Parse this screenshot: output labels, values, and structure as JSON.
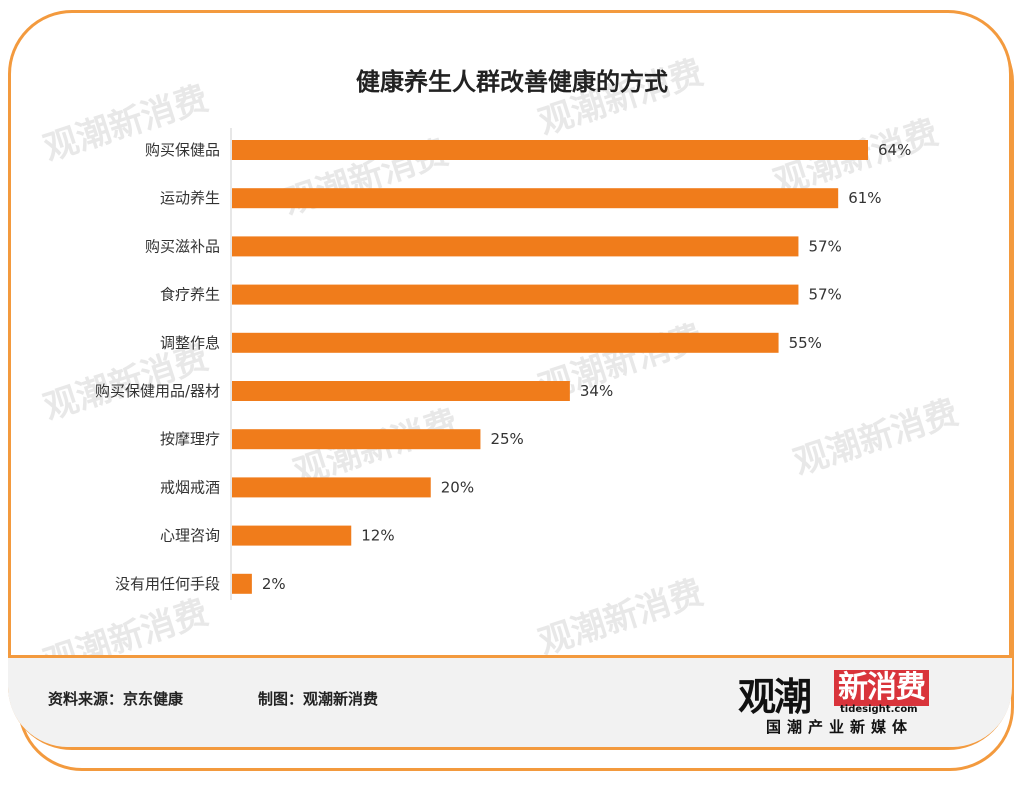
{
  "chart_data": {
    "type": "bar",
    "orientation": "horizontal",
    "title": "健康养生人群改善健康的方式",
    "categories": [
      "购买保健品",
      "运动养生",
      "购买滋补品",
      "食疗养生",
      "调整作息",
      "购买保健用品/器材",
      "按摩理疗",
      "戒烟戒酒",
      "心理咨询",
      "没有用任何手段"
    ],
    "values": [
      64,
      61,
      57,
      57,
      55,
      34,
      25,
      20,
      12,
      2
    ],
    "value_labels": [
      "64%",
      "61%",
      "57%",
      "57%",
      "55%",
      "34%",
      "25%",
      "20%",
      "12%",
      "2%"
    ],
    "xlim": [
      0,
      64
    ],
    "grid": false,
    "bar_color": "#f07c1b"
  },
  "footer": {
    "source": "资料来源：京东健康",
    "credit": "制图：观潮新消费"
  },
  "logo": {
    "main": "观潮",
    "highlight": "新消费",
    "site": "tidesight.com",
    "tagline": "国潮产业新媒体"
  },
  "watermark": {
    "main": "观潮",
    "highlight": "新消费",
    "site": "tidesight.com",
    "tagline": "国潮产业新媒体"
  },
  "colors": {
    "accent": "#f39a3e",
    "bar": "#f07c1b",
    "logo_red": "#d9343b"
  }
}
